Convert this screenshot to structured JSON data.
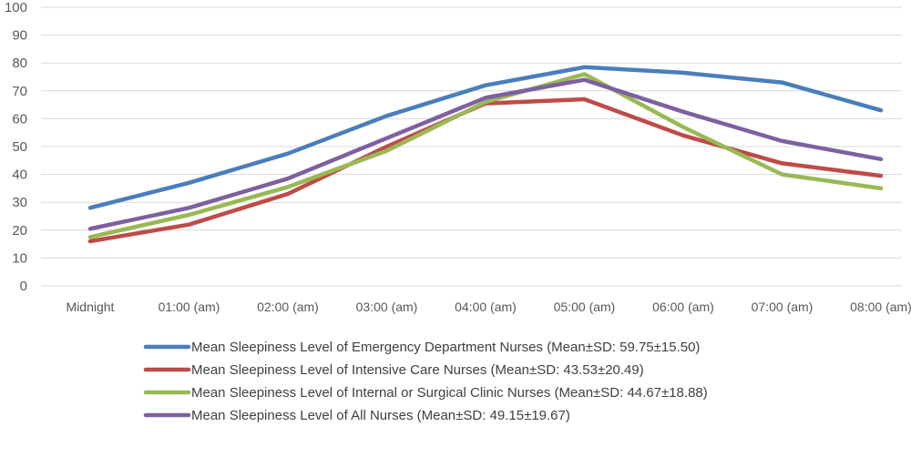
{
  "chart_data": {
    "type": "line",
    "title": "",
    "xlabel": "",
    "ylabel": "",
    "categories": [
      "Midnight",
      "01:00 (am)",
      "02:00 (am)",
      "03:00 (am)",
      "04:00 (am)",
      "05:00 (am)",
      "06:00 (am)",
      "07:00 (am)",
      "08:00 (am)"
    ],
    "ylim": [
      0,
      100
    ],
    "yticks": [
      0,
      10,
      20,
      30,
      40,
      50,
      60,
      70,
      80,
      90,
      100
    ],
    "grid": true,
    "legend_position": "bottom",
    "series": [
      {
        "name": "Mean Sleepiness Level of Emergency Department Nurses (Mean±SD: 59.75±15.50)",
        "color": "#4a7ebb",
        "values": [
          28,
          37,
          47.5,
          61,
          72,
          78.5,
          76.5,
          73,
          63
        ]
      },
      {
        "name": "Mean Sleepiness Level of Intensive Care Nurses (Mean±SD: 43.53±20.49)",
        "color": "#be4b48",
        "values": [
          16,
          22,
          33,
          50,
          65.5,
          67,
          54,
          44,
          39.5
        ]
      },
      {
        "name": "Mean Sleepiness Level of Internal or Surgical Clinic Nurses (Mean±SD: 44.67±18.88)",
        "color": "#98b954",
        "values": [
          17.5,
          25.5,
          35.5,
          48.5,
          66,
          76,
          57,
          40,
          35
        ]
      },
      {
        "name": "Mean Sleepiness Level of All Nurses (Mean±SD: 49.15±19.67)",
        "color": "#7d60a0",
        "values": [
          20.5,
          28,
          38.5,
          53,
          67.5,
          74,
          62.5,
          52,
          45.5
        ]
      }
    ]
  }
}
